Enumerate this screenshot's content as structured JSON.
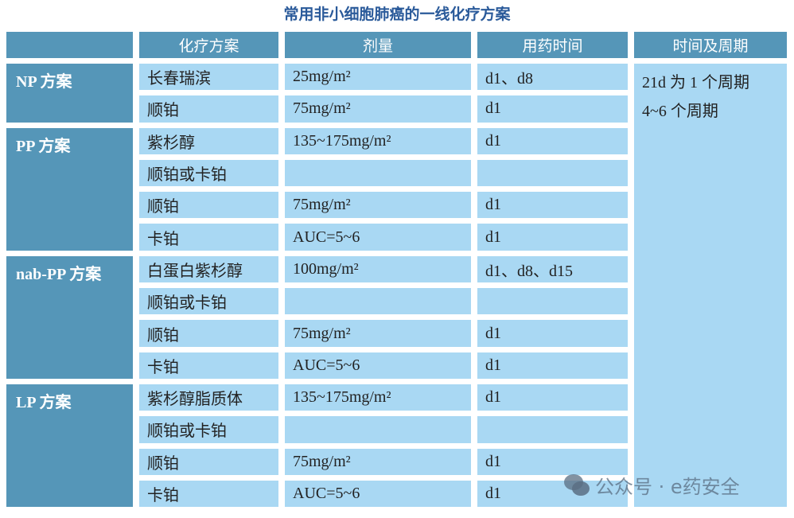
{
  "title": "常用非小细胞肺癌的一线化疗方案",
  "headers": [
    "",
    "化疗方案",
    "剂量",
    "用药时间",
    "时间及周期"
  ],
  "groups": [
    {
      "name": "NP 方案",
      "rows": [
        [
          "长春瑞滨",
          "25mg/m²",
          "d1、d8"
        ],
        [
          "顺铂",
          "75mg/m²",
          "d1"
        ]
      ]
    },
    {
      "name": "PP 方案",
      "rows": [
        [
          "紫杉醇",
          "135~175mg/m²",
          "d1"
        ],
        [
          "顺铂或卡铂",
          "",
          ""
        ],
        [
          "顺铂",
          "75mg/m²",
          "d1"
        ],
        [
          "卡铂",
          "AUC=5~6",
          "d1"
        ]
      ]
    },
    {
      "name": "nab-PP 方案",
      "rows": [
        [
          "白蛋白紫杉醇",
          "100mg/m²",
          "d1、d8、d15"
        ],
        [
          "顺铂或卡铂",
          "",
          ""
        ],
        [
          "顺铂",
          "75mg/m²",
          "d1"
        ],
        [
          "卡铂",
          "AUC=5~6",
          "d1"
        ]
      ]
    },
    {
      "name": "LP 方案",
      "rows": [
        [
          "紫杉醇脂质体",
          "135~175mg/m²",
          "d1"
        ],
        [
          "顺铂或卡铂",
          "",
          ""
        ],
        [
          "顺铂",
          "75mg/m²",
          "d1"
        ],
        [
          "卡铂",
          "AUC=5~6",
          "d1"
        ]
      ]
    }
  ],
  "period": [
    "21d 为 1 个周期",
    "4~6 个周期"
  ],
  "watermark": {
    "icon": "wechat-icon",
    "text": "公众号 · e药安全"
  },
  "colors": {
    "header": "#5596b8",
    "cell": "#a9d8f3",
    "title": "#2a5a9a"
  }
}
